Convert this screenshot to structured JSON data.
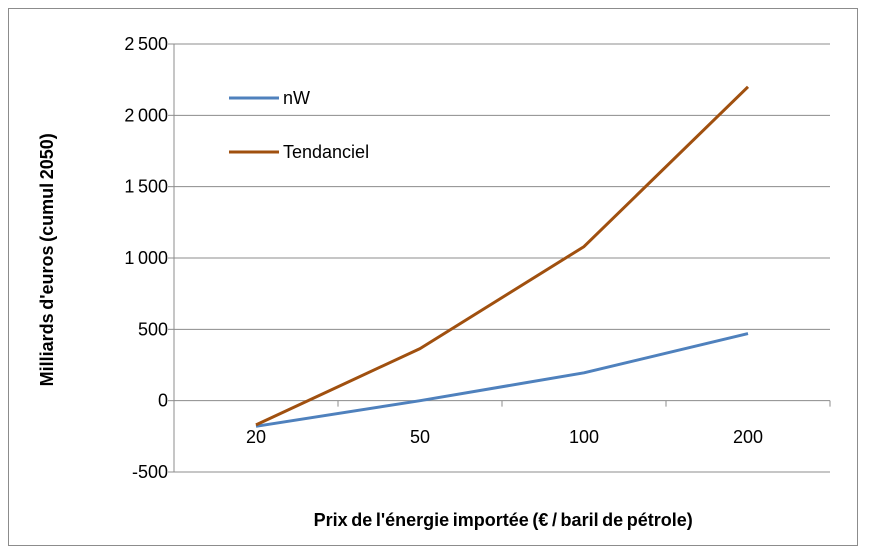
{
  "chart_data": {
    "type": "line",
    "title": "",
    "xlabel": "Prix de l'énergie importée (€ / baril de pétrole) ",
    "ylabel": "Milliards d'euros (cumul 2050) ",
    "categories": [
      "20",
      "50",
      "100",
      "200"
    ],
    "y_ticks": [
      "2 500",
      "2 000",
      "1 500",
      "1 000",
      "500",
      "0",
      "-500"
    ],
    "y_tick_values": [
      2500,
      2000,
      1500,
      1000,
      500,
      0,
      -500
    ],
    "ylim": [
      -500,
      2500
    ],
    "grid": true,
    "legend_position": "top-left",
    "series": [
      {
        "name": "nW",
        "color": "#4f81bd",
        "values": [
          -180,
          0,
          195,
          470
        ]
      },
      {
        "name": "Tendanciel",
        "color": "#a0500f",
        "values": [
          -170,
          365,
          1080,
          2200
        ]
      }
    ]
  }
}
